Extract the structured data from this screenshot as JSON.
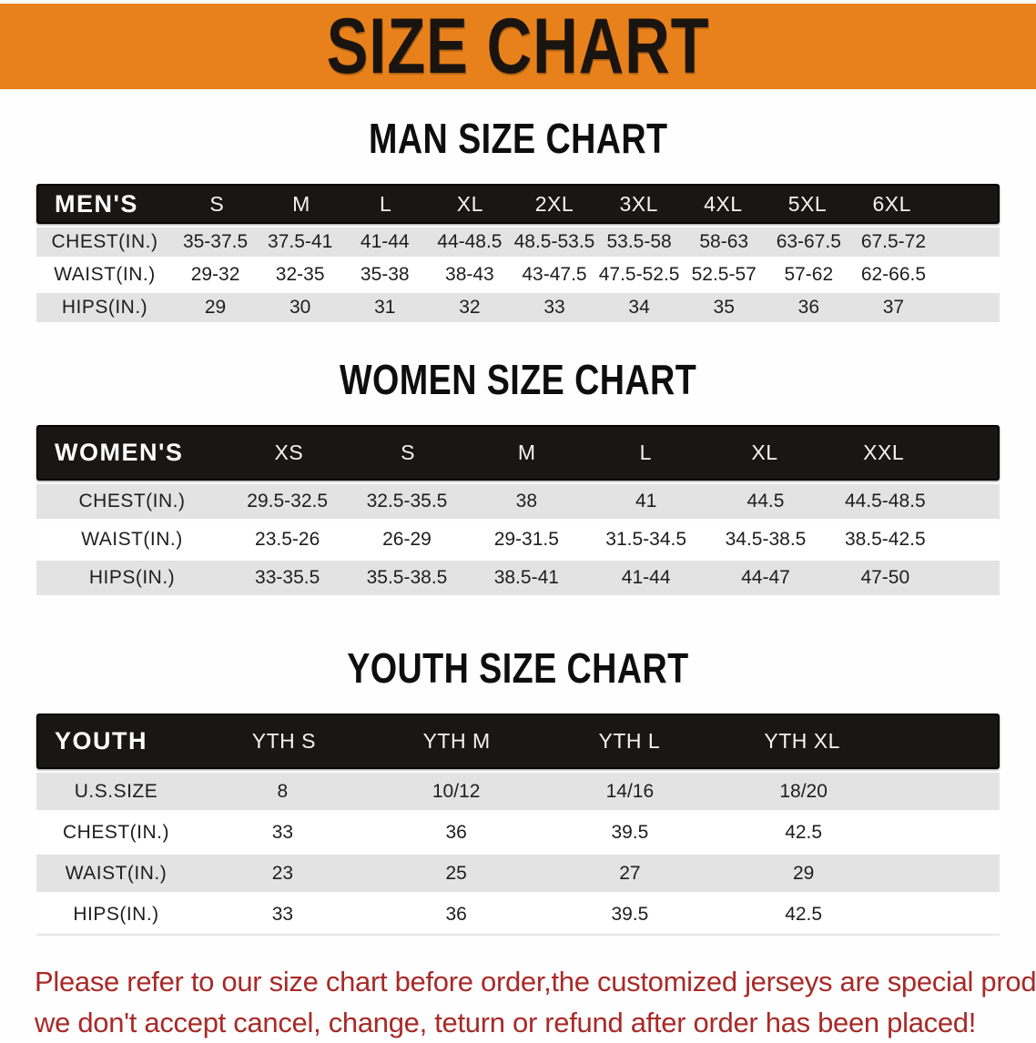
{
  "banner": {
    "title": "SIZE CHART",
    "bg_color": "#e8811b",
    "text_color": "#1a1410"
  },
  "men": {
    "heading": "MAN SIZE CHART",
    "corner_label": "MEN'S",
    "columns": [
      "S",
      "M",
      "L",
      "XL",
      "2XL",
      "3XL",
      "4XL",
      "5XL",
      "6XL"
    ],
    "rows": [
      {
        "label": "CHEST(IN.)",
        "values": [
          "35-37.5",
          "37.5-41",
          "41-44",
          "44-48.5",
          "48.5-53.5",
          "53.5-58",
          "58-63",
          "63-67.5",
          "67.5-72"
        ]
      },
      {
        "label": "WAIST(IN.)",
        "values": [
          "29-32",
          "32-35",
          "35-38",
          "38-43",
          "43-47.5",
          "47.5-52.5",
          "52.5-57",
          "57-62",
          "62-66.5"
        ]
      },
      {
        "label": "HIPS(IN.)",
        "values": [
          "29",
          "30",
          "31",
          "32",
          "33",
          "34",
          "35",
          "36",
          "37"
        ]
      }
    ]
  },
  "women": {
    "heading": "WOMEN SIZE CHART",
    "corner_label": "WOMEN'S",
    "columns": [
      "XS",
      "S",
      "M",
      "L",
      "XL",
      "XXL"
    ],
    "rows": [
      {
        "label": "CHEST(IN.)",
        "values": [
          "29.5-32.5",
          "32.5-35.5",
          "38",
          "41",
          "44.5",
          "44.5-48.5"
        ]
      },
      {
        "label": "WAIST(IN.)",
        "values": [
          "23.5-26",
          "26-29",
          "29-31.5",
          "31.5-34.5",
          "34.5-38.5",
          "38.5-42.5"
        ]
      },
      {
        "label": "HIPS(IN.)",
        "values": [
          "33-35.5",
          "35.5-38.5",
          "38.5-41",
          "41-44",
          "44-47",
          "47-50"
        ]
      }
    ]
  },
  "youth": {
    "heading": "YOUTH SIZE CHART",
    "corner_label": "YOUTH",
    "columns": [
      "YTH S",
      "YTH M",
      "YTH L",
      "YTH XL"
    ],
    "rows": [
      {
        "label": "U.S.SIZE",
        "values": [
          "8",
          "10/12",
          "14/16",
          "18/20"
        ]
      },
      {
        "label": "CHEST(IN.)",
        "values": [
          "33",
          "36",
          "39.5",
          "42.5"
        ]
      },
      {
        "label": "WAIST(IN.)",
        "values": [
          "23",
          "25",
          "27",
          "29"
        ]
      },
      {
        "label": "HIPS(IN.)",
        "values": [
          "33",
          "36",
          "39.5",
          "42.5"
        ]
      }
    ]
  },
  "footer": {
    "line1": "Please refer to our size chart before order,the customized jerseys are special products,",
    "line2": "we don't accept cancel, change, teturn or refund after order has been placed!",
    "text_color": "#a82a27"
  },
  "colors": {
    "row_stripe": "#e3e3e3",
    "table_header_bg": "#181716",
    "table_header_text": "#ffffff"
  }
}
